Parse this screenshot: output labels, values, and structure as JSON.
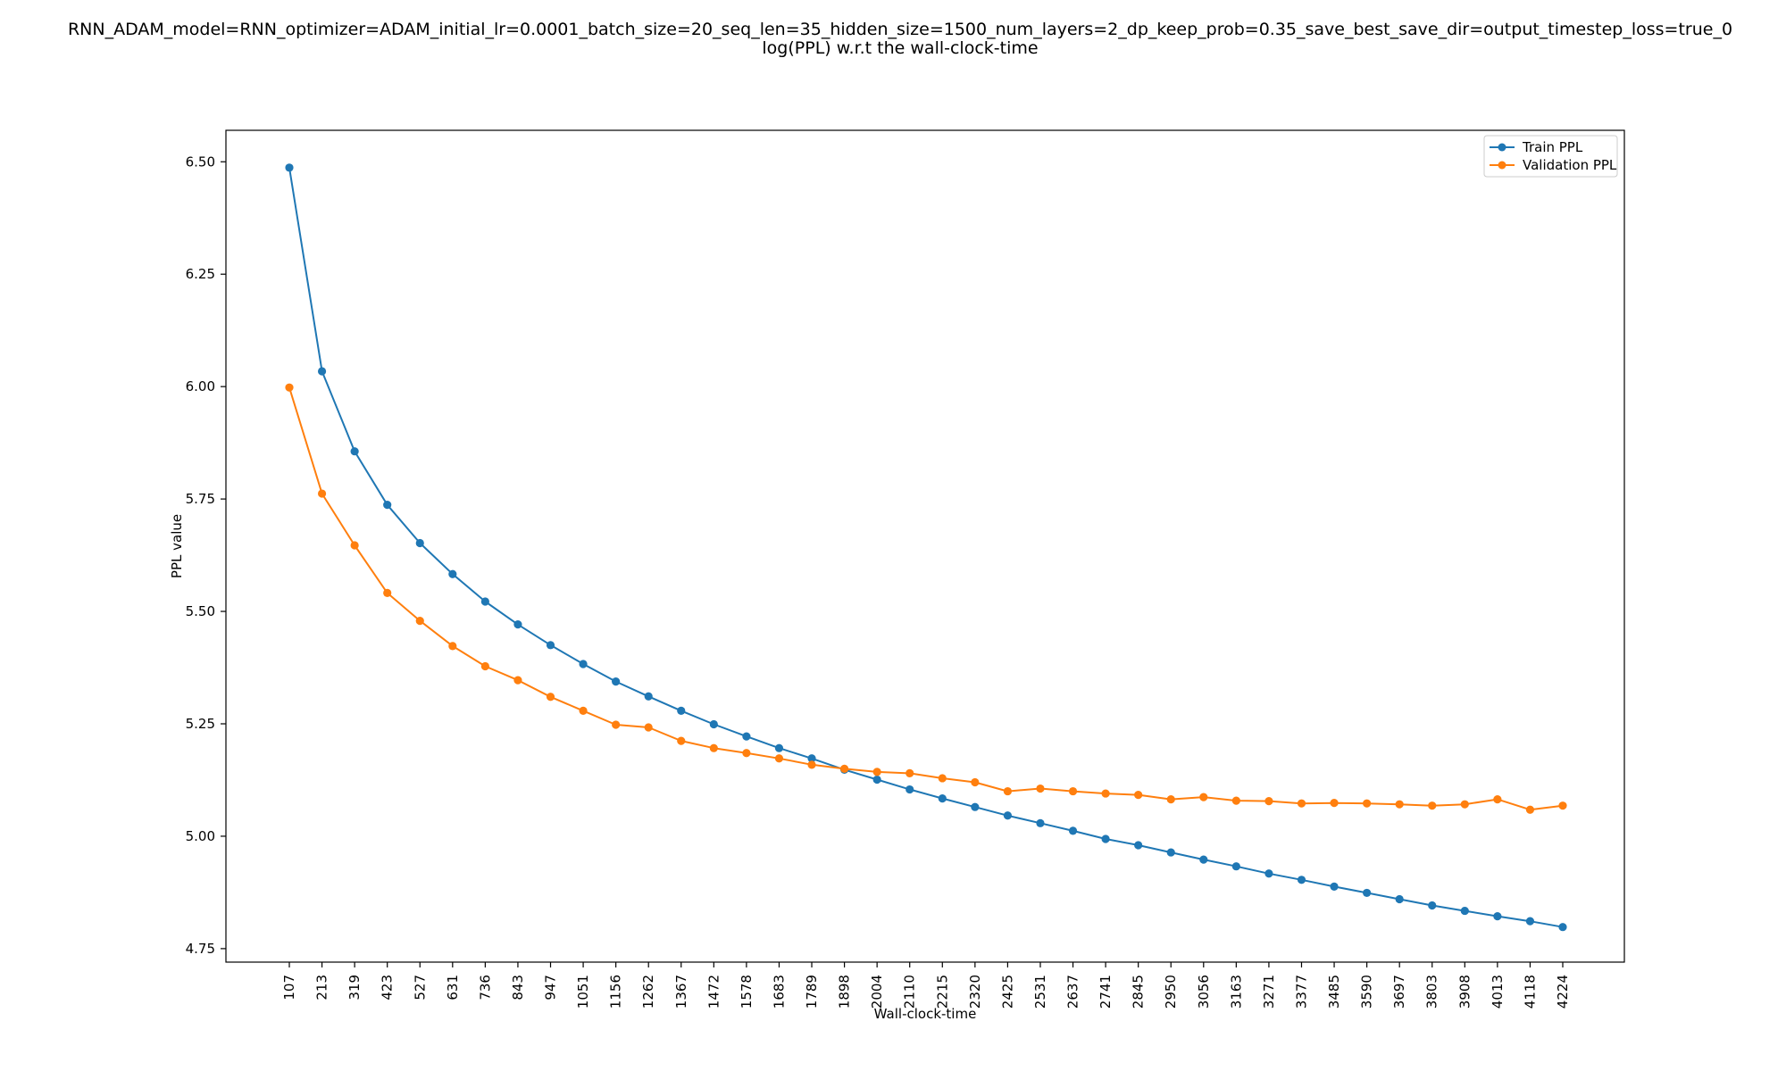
{
  "chart_data": {
    "type": "line",
    "title": "RNN_ADAM_model=RNN_optimizer=ADAM_initial_lr=0.0001_batch_size=20_seq_len=35_hidden_size=1500_num_layers=2_dp_keep_prob=0.35_save_best_save_dir=output_timestep_loss=true_0",
    "subtitle": "log(PPL) w.r.t the wall-clock-time",
    "xlabel": "Wall-clock-time",
    "ylabel": "PPL value",
    "categories": [
      "107",
      "213",
      "319",
      "423",
      "527",
      "631",
      "736",
      "843",
      "947",
      "1051",
      "1156",
      "1262",
      "1367",
      "1472",
      "1578",
      "1683",
      "1789",
      "1898",
      "2004",
      "2110",
      "2215",
      "2320",
      "2425",
      "2531",
      "2637",
      "2741",
      "2845",
      "2950",
      "3056",
      "3163",
      "3271",
      "3377",
      "3485",
      "3590",
      "3697",
      "3803",
      "3908",
      "4013",
      "4118",
      "4224"
    ],
    "ylim": [
      4.72,
      6.57
    ],
    "yticks": [
      "4.75",
      "5.00",
      "5.25",
      "5.50",
      "5.75",
      "6.00",
      "6.25",
      "6.50"
    ],
    "grid": false,
    "legend_position": "top-right",
    "series": [
      {
        "name": "Train PPL",
        "color": "#1f77b4",
        "values": [
          6.487,
          6.034,
          5.856,
          5.737,
          5.652,
          5.583,
          5.522,
          5.471,
          5.425,
          5.383,
          5.344,
          5.311,
          5.279,
          5.249,
          5.222,
          5.196,
          5.173,
          5.148,
          5.126,
          5.104,
          5.084,
          5.065,
          5.046,
          5.029,
          5.012,
          4.994,
          4.98,
          4.964,
          4.948,
          4.933,
          4.917,
          4.903,
          4.888,
          4.874,
          4.86,
          4.846,
          4.834,
          4.822,
          4.811,
          4.798
        ]
      },
      {
        "name": "Validation PPL",
        "color": "#ff7f0e",
        "values": [
          5.998,
          5.762,
          5.647,
          5.541,
          5.479,
          5.423,
          5.378,
          5.347,
          5.31,
          5.279,
          5.248,
          5.242,
          5.212,
          5.196,
          5.185,
          5.173,
          5.159,
          5.15,
          5.143,
          5.14,
          5.129,
          5.12,
          5.1,
          5.106,
          5.1,
          5.095,
          5.092,
          5.082,
          5.087,
          5.079,
          5.078,
          5.073,
          5.074,
          5.073,
          5.071,
          5.068,
          5.071,
          5.082,
          5.059,
          5.068
        ]
      }
    ]
  }
}
